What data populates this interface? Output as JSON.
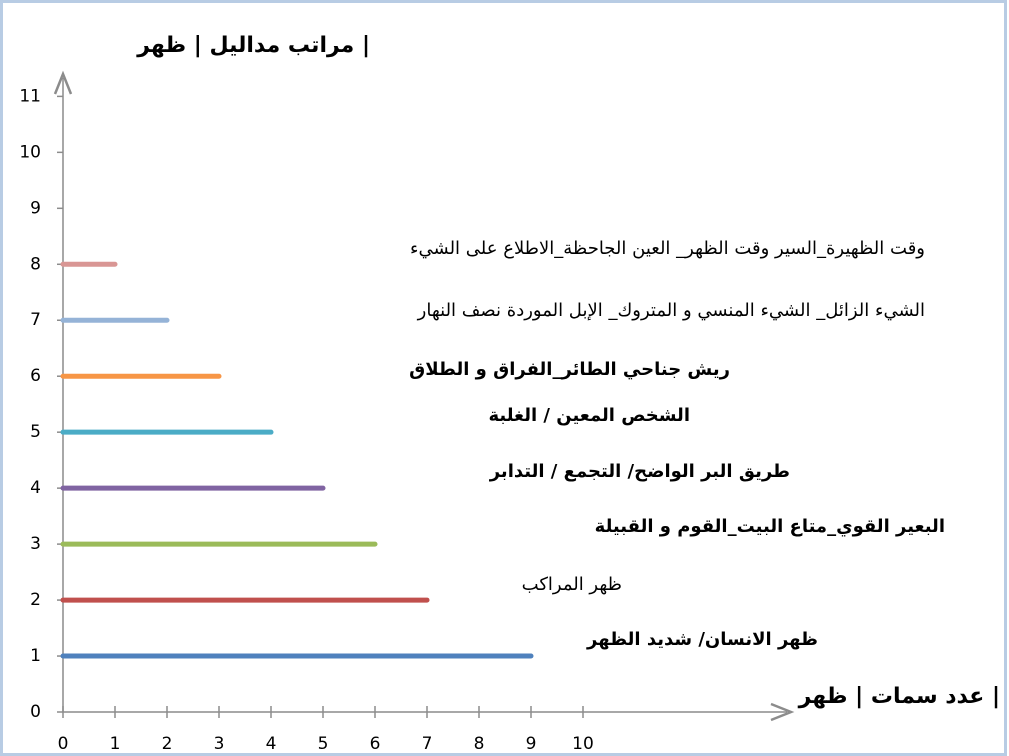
{
  "chart_data": {
    "type": "bar",
    "title": "مراتب مداليل | ظهر |",
    "x_label": "عدد سمات | ظهر |",
    "y": [
      1,
      2,
      3,
      4,
      5,
      6,
      7,
      8
    ],
    "values": [
      9,
      7,
      6,
      5,
      4,
      3,
      2,
      1
    ],
    "colors": [
      "#4f81bd",
      "#c0504d",
      "#9bbb59",
      "#8064a2",
      "#4bacc6",
      "#f79646",
      "#95b3d7",
      "#d99694"
    ],
    "labels": [
      "ظهر الانسان/ شديد الظهر",
      "ظهر المراكب",
      "البعير القوي_متاع البيت_القوم و القبيلة",
      "طريق البر الواضح/ التجمع / التدابر",
      "الشخص المعين / الغلبة",
      "ريش جناحي الطائر_الفراق و الطلاق",
      "الشيء الزائل_ الشيء المنسي و المتروك_ الإبل الموردة نصف النهار",
      "وقت الظهيرة_السير وقت الظهر_ العين الجاحظة_الاطلاع على الشيء"
    ],
    "xlim": [
      0,
      14
    ],
    "xticks": [
      0,
      1,
      2,
      3,
      4,
      5,
      6,
      7,
      8,
      9,
      10
    ],
    "ylim": [
      0,
      11.4
    ],
    "yticks": [
      0,
      1,
      2,
      3,
      4,
      5,
      6,
      7,
      8,
      9,
      10,
      11
    ]
  }
}
